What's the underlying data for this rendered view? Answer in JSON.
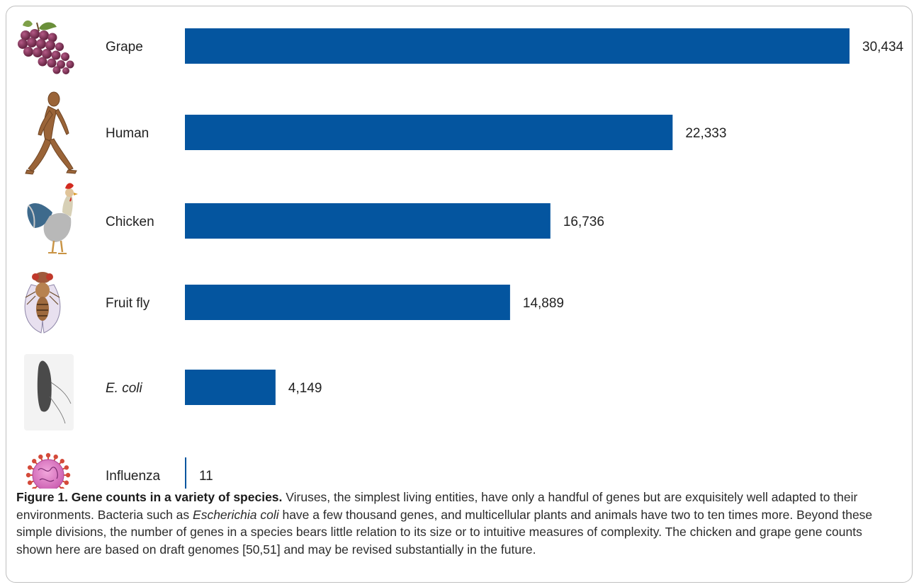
{
  "chart_data": {
    "type": "bar",
    "orientation": "horizontal",
    "categories": [
      "Grape",
      "Human",
      "Chicken",
      "Fruit fly",
      "E. coli",
      "Influenza"
    ],
    "values": [
      30434,
      22333,
      16736,
      14889,
      4149,
      11
    ],
    "value_labels": [
      "30,434",
      "22,333",
      "16,736",
      "14,889",
      "4,149",
      "11"
    ],
    "icons": [
      "grape-icon",
      "human-icon",
      "chicken-icon",
      "fruit-fly-icon",
      "e-coli-icon",
      "influenza-icon"
    ],
    "xlim": [
      0,
      30434
    ],
    "grid": false,
    "bar_color": "#04559f"
  },
  "caption": {
    "title": "Figure 1. Gene counts in a variety of species.",
    "part1": " Viruses, the simplest living entities, have only a handful of genes but are exquisitely well adapted to their environments. Bacteria such as ",
    "italic": "Escherichia coli",
    "part2": " have a few thousand genes, and multicellular plants and animals have two to ten times more. Beyond these simple divisions, the number of genes in a species bears little relation to its size or to intuitive measures of complexity. The chicken and grape gene counts shown here are based on draft genomes [50,51] and may be revised substantially in the future."
  }
}
